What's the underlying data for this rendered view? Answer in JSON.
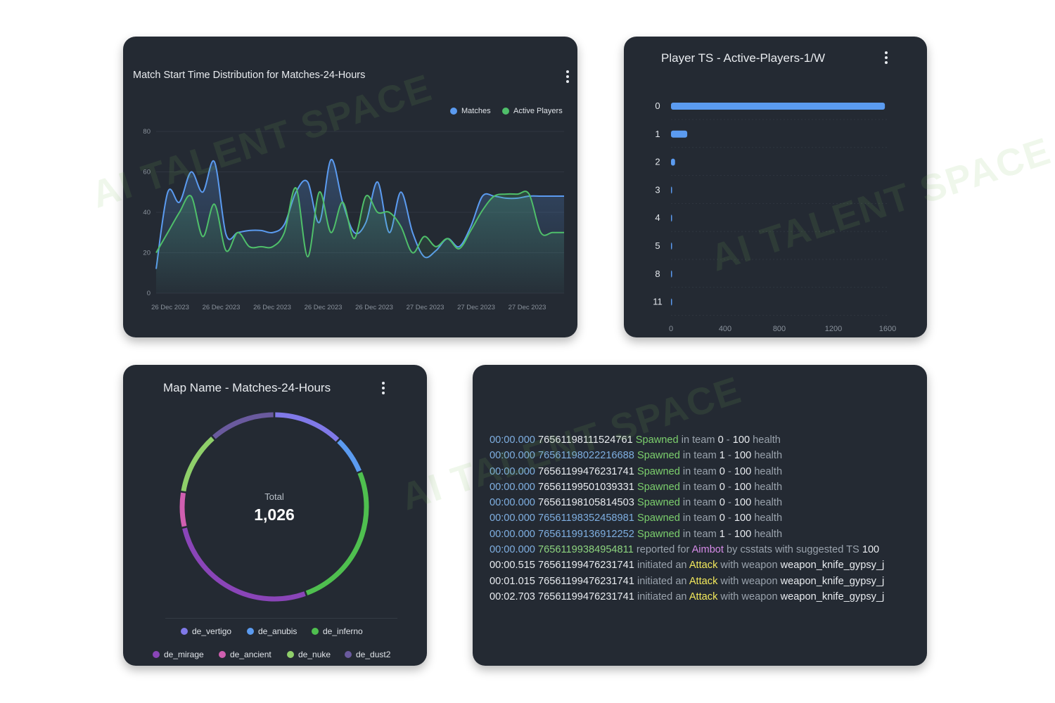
{
  "watermark": "AI TALENT SPACE",
  "match_chart": {
    "title": "Match Start Time Distribution for Matches-24-Hours",
    "legend": [
      {
        "label": "Matches",
        "color": "#5b9bf0"
      },
      {
        "label": "Active Players",
        "color": "#4fbf6a"
      }
    ]
  },
  "player_chart": {
    "title": "Player TS - Active-Players-1/W"
  },
  "map_chart": {
    "title": "Map Name - Matches-24-Hours",
    "total_label": "Total",
    "total_value": "1,026",
    "legend": [
      {
        "label": "de_vertigo",
        "color": "#8079e8"
      },
      {
        "label": "de_anubis",
        "color": "#5b9bf0"
      },
      {
        "label": "de_inferno",
        "color": "#4fbf4f"
      },
      {
        "label": "de_mirage",
        "color": "#8a45b8"
      },
      {
        "label": "de_ancient",
        "color": "#d05fb0"
      },
      {
        "label": "de_nuke",
        "color": "#8fcf6a"
      },
      {
        "label": "de_dust2",
        "color": "#6a5a9e"
      }
    ]
  },
  "log": {
    "lines": [
      {
        "ts": "00:00.000",
        "id": "76561198111524761",
        "action": "Spawned",
        "mid": " in team ",
        "team": "0",
        "sep": " - ",
        "health": "100",
        "tail": " health"
      },
      {
        "ts": "00:00.000",
        "id": "76561198022216688",
        "action": "Spawned",
        "mid": " in team ",
        "team": "1",
        "sep": " - ",
        "health": "100",
        "tail": " health"
      },
      {
        "ts": "00:00.000",
        "id": "76561199476231741",
        "action": "Spawned",
        "mid": " in team ",
        "team": "0",
        "sep": " - ",
        "health": "100",
        "tail": " health"
      },
      {
        "ts": "00:00.000",
        "id": "76561199501039331",
        "action": "Spawned",
        "mid": " in team ",
        "team": "0",
        "sep": " - ",
        "health": "100",
        "tail": " health"
      },
      {
        "ts": "00:00.000",
        "id": "76561198105814503",
        "action": "Spawned",
        "mid": " in team ",
        "team": "0",
        "sep": " - ",
        "health": "100",
        "tail": " health"
      },
      {
        "ts": "00:00.000",
        "id": "76561198352458981",
        "action": "Spawned",
        "mid": " in team ",
        "team": "0",
        "sep": " - ",
        "health": "100",
        "tail": " health"
      },
      {
        "ts": "00:00.000",
        "id": "76561199136912252",
        "action": "Spawned",
        "mid": " in team ",
        "team": "1",
        "sep": " - ",
        "health": "100",
        "tail": " health"
      }
    ],
    "report": {
      "ts": "00:00.000",
      "id": "76561199384954811",
      "pre": " reported for ",
      "keyword": "Aimbot",
      "mid": " by csstats with suggested TS ",
      "value": "100"
    },
    "attacks": [
      {
        "ts": "00:00.515",
        "id": "76561199476231741",
        "pre": " initiated an ",
        "keyword": "Attack",
        "mid": " with weapon ",
        "weapon": "weapon_knife_gypsy_j"
      },
      {
        "ts": "00:01.015",
        "id": "76561199476231741",
        "pre": " initiated an ",
        "keyword": "Attack",
        "mid": " with weapon ",
        "weapon": "weapon_knife_gypsy_j"
      },
      {
        "ts": "00:02.703",
        "id": "76561199476231741",
        "pre": " initiated an ",
        "keyword": "Attack",
        "mid": " with weapon ",
        "weapon": "weapon_knife_gypsy_j"
      }
    ]
  },
  "chart_data": [
    {
      "type": "area",
      "title": "Match Start Time Distribution for Matches-24-Hours",
      "xlabel": "",
      "ylabel": "",
      "ylim": [
        0,
        80
      ],
      "yticks": [
        0,
        20,
        40,
        60,
        80
      ],
      "xticks": [
        "26 Dec 2023",
        "26 Dec 2023",
        "26 Dec 2023",
        "26 Dec 2023",
        "26 Dec 2023",
        "27 Dec 2023",
        "27 Dec 2023",
        "27 Dec 2023"
      ],
      "n_points": 36,
      "legend_position": "top-right",
      "grid": true,
      "series": [
        {
          "name": "Matches",
          "color": "#5b9bf0",
          "values": [
            12,
            50,
            45,
            60,
            50,
            65,
            29,
            30,
            31,
            31,
            30,
            34,
            50,
            55,
            35,
            66,
            45,
            30,
            35,
            55,
            30,
            50,
            30,
            18,
            21,
            27,
            23,
            33,
            48,
            48,
            47,
            47,
            48,
            48,
            48,
            48
          ]
        },
        {
          "name": "Active Players",
          "color": "#4fbf6a",
          "values": [
            20,
            30,
            40,
            48,
            28,
            44,
            21,
            30,
            23,
            23,
            23,
            30,
            52,
            18,
            50,
            30,
            45,
            27,
            48,
            40,
            40,
            33,
            20,
            28,
            23,
            27,
            22,
            31,
            41,
            48,
            49,
            49,
            49,
            30,
            30,
            30
          ]
        }
      ]
    },
    {
      "type": "bar",
      "orientation": "horizontal",
      "title": "Player TS - Active-Players-1/W",
      "categories": [
        "0",
        "1",
        "2",
        "3",
        "4",
        "5",
        "8",
        "11"
      ],
      "values": [
        1580,
        120,
        30,
        6,
        2,
        2,
        1,
        1
      ],
      "xlim": [
        0,
        1600
      ],
      "xticks": [
        0,
        400,
        800,
        1200,
        1600
      ],
      "color": "#5b9bf0",
      "grid": true
    },
    {
      "type": "pie",
      "style": "donut",
      "title": "Map Name - Matches-24-Hours",
      "total": 1026,
      "categories": [
        "de_vertigo",
        "de_anubis",
        "de_inferno",
        "de_mirage",
        "de_ancient",
        "de_nuke",
        "de_dust2"
      ],
      "values": [
        125,
        68,
        263,
        277,
        63,
        112,
        118
      ],
      "colors": [
        "#8079e8",
        "#5b9bf0",
        "#4fbf4f",
        "#8a45b8",
        "#d05fb0",
        "#8fcf6a",
        "#6a5a9e"
      ],
      "legend_position": "bottom"
    }
  ]
}
